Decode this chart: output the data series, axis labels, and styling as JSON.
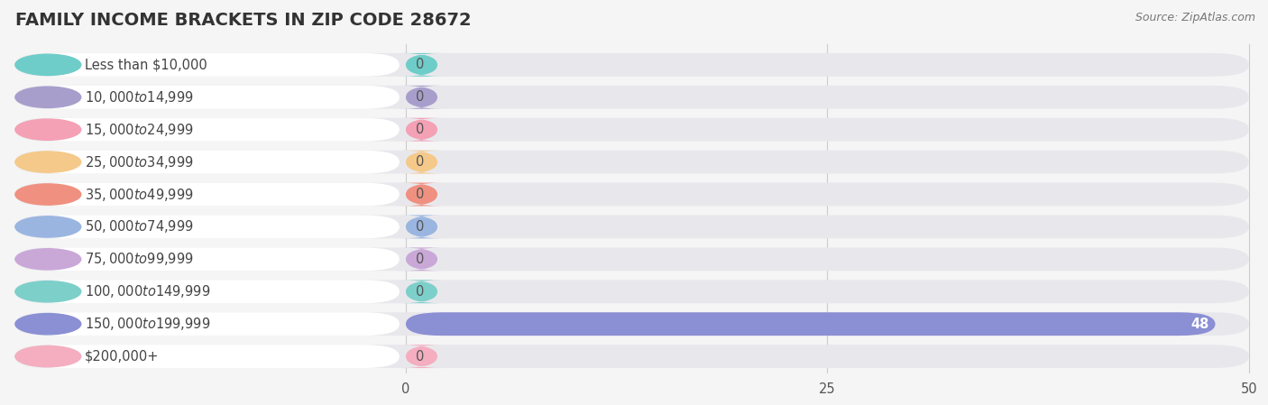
{
  "title": "FAMILY INCOME BRACKETS IN ZIP CODE 28672",
  "source": "Source: ZipAtlas.com",
  "categories": [
    "Less than $10,000",
    "$10,000 to $14,999",
    "$15,000 to $24,999",
    "$25,000 to $34,999",
    "$35,000 to $49,999",
    "$50,000 to $74,999",
    "$75,000 to $99,999",
    "$100,000 to $149,999",
    "$150,000 to $199,999",
    "$200,000+"
  ],
  "values": [
    0,
    0,
    0,
    0,
    0,
    0,
    0,
    0,
    48,
    0
  ],
  "bar_colors": [
    "#6ecdc8",
    "#a89ecc",
    "#f4a0b5",
    "#f5c98a",
    "#f09080",
    "#9ab5e0",
    "#c9a8d8",
    "#7dcfca",
    "#8b8fd4",
    "#f4aec0"
  ],
  "background_color": "#f5f5f5",
  "bar_bg_color": "#e8e8ec",
  "white_label_bg": "#ffffff",
  "xlim": [
    0,
    50
  ],
  "xticks": [
    0,
    25,
    50
  ],
  "label_color": "#444444",
  "value_label_color_inside": "#ffffff",
  "value_label_color_outside": "#555555",
  "title_fontsize": 14,
  "label_fontsize": 10.5,
  "tick_fontsize": 10.5,
  "n_categories": 10
}
